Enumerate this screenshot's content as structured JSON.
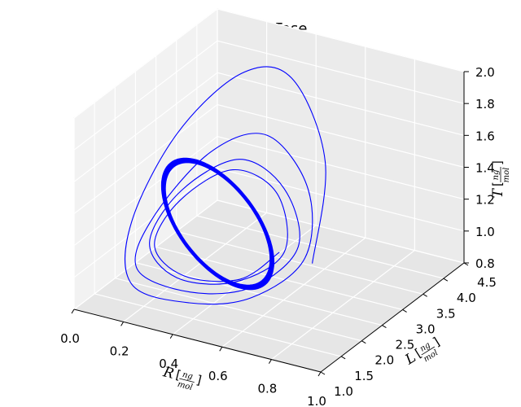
{
  "chart_data": {
    "type": "line",
    "projection": "3d",
    "title": "Espacio Fase",
    "xlabel": {
      "main": "R",
      "num": "ng",
      "den": "mol"
    },
    "ylabel": {
      "main": "L",
      "num": "ng",
      "den": "mol"
    },
    "zlabel": {
      "main": "T",
      "num": "ng",
      "den": "mol"
    },
    "xlim": [
      0.0,
      1.0
    ],
    "ylim": [
      1.0,
      4.5
    ],
    "zlim": [
      0.8,
      2.0
    ],
    "xticks": [
      "0.0",
      "0.2",
      "0.4",
      "0.6",
      "0.8",
      "1.0"
    ],
    "yticks": [
      "1.0",
      "1.5",
      "2.0",
      "2.5",
      "3.0",
      "3.5",
      "4.0",
      "4.5"
    ],
    "zticks": [
      "0.8",
      "1.0",
      "1.2",
      "1.4",
      "1.6",
      "1.8",
      "2.0"
    ],
    "grid": true,
    "series": [
      {
        "color": "#0000ff",
        "points": [
          [
            0.7,
            2.6,
            1.05
          ],
          [
            0.62,
            3.4,
            1.5
          ],
          [
            0.45,
            3.6,
            1.92
          ],
          [
            0.28,
            3.4,
            1.92
          ],
          [
            0.12,
            2.8,
            1.6
          ],
          [
            0.05,
            2.1,
            1.15
          ],
          [
            0.15,
            1.5,
            0.92
          ],
          [
            0.4,
            1.4,
            0.92
          ],
          [
            0.62,
            1.6,
            1.0
          ],
          [
            0.72,
            2.3,
            1.15
          ],
          [
            0.6,
            3.1,
            1.38
          ],
          [
            0.4,
            3.3,
            1.6
          ],
          [
            0.22,
            3.0,
            1.48
          ],
          [
            0.1,
            2.3,
            1.15
          ],
          [
            0.14,
            1.7,
            0.97
          ],
          [
            0.38,
            1.55,
            0.95
          ],
          [
            0.6,
            1.75,
            1.03
          ],
          [
            0.66,
            2.5,
            1.16
          ],
          [
            0.52,
            3.0,
            1.37
          ],
          [
            0.33,
            3.05,
            1.47
          ],
          [
            0.17,
            2.6,
            1.3
          ],
          [
            0.14,
            2.0,
            1.08
          ],
          [
            0.3,
            1.7,
            0.98
          ],
          [
            0.52,
            1.8,
            1.02
          ],
          [
            0.62,
            2.4,
            1.13
          ],
          [
            0.5,
            2.95,
            1.34
          ],
          [
            0.32,
            2.95,
            1.42
          ],
          [
            0.18,
            2.5,
            1.26
          ],
          [
            0.16,
            2.0,
            1.07
          ],
          [
            0.32,
            1.75,
            0.99
          ],
          [
            0.53,
            1.85,
            1.03
          ],
          [
            0.6,
            2.4,
            1.12
          ]
        ],
        "limit_cycle": {
          "center": [
            0.35,
            2.4,
            1.2
          ],
          "amplitude": [
            0.25,
            0.62,
            0.21
          ],
          "phase_offsets": [
            0.0,
            0.5,
            1.1
          ],
          "turns": 26
        }
      }
    ]
  }
}
